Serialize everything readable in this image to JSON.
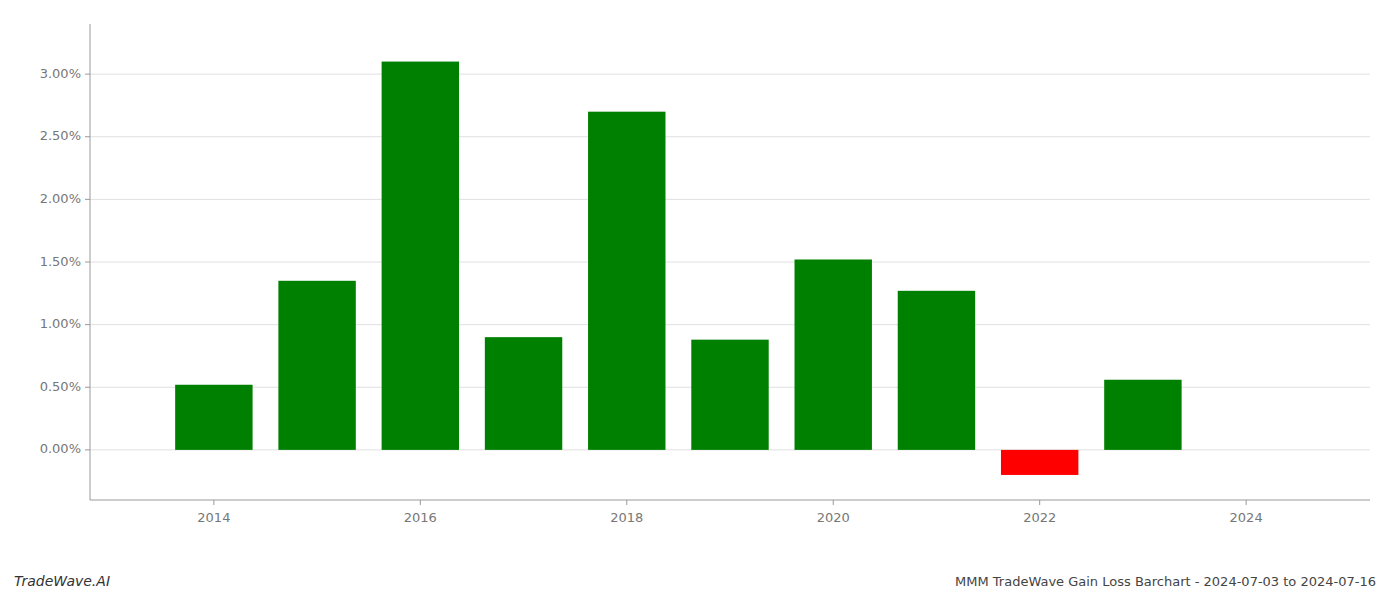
{
  "chart_data": {
    "type": "bar",
    "title": "MMM TradeWave Gain Loss Barchart - 2024-07-03 to 2024-07-16",
    "annotations": [
      "TradeWave.AI"
    ],
    "x": [
      2014,
      2015,
      2016,
      2017,
      2018,
      2019,
      2020,
      2021,
      2022,
      2023
    ],
    "values": [
      0.0052,
      0.0135,
      0.031,
      0.009,
      0.027,
      0.0088,
      0.0152,
      0.0127,
      -0.002,
      0.0056
    ],
    "colors": [
      "#008000",
      "#008000",
      "#008000",
      "#008000",
      "#008000",
      "#008000",
      "#008000",
      "#008000",
      "#ff0000",
      "#008000"
    ],
    "xlim": [
      2012.8,
      2025.2
    ],
    "xticks": [
      2014,
      2016,
      2018,
      2020,
      2022,
      2024
    ],
    "ylim": [
      -0.004,
      0.034
    ],
    "yticks": [
      {
        "value": 0.0,
        "label": "0.00%"
      },
      {
        "value": 0.005,
        "label": "0.50%"
      },
      {
        "value": 0.01,
        "label": "1.00%"
      },
      {
        "value": 0.015,
        "label": "1.50%"
      },
      {
        "value": 0.02,
        "label": "2.00%"
      },
      {
        "value": 0.025,
        "label": "2.50%"
      },
      {
        "value": 0.03,
        "label": "3.00%"
      }
    ],
    "grid": true
  }
}
